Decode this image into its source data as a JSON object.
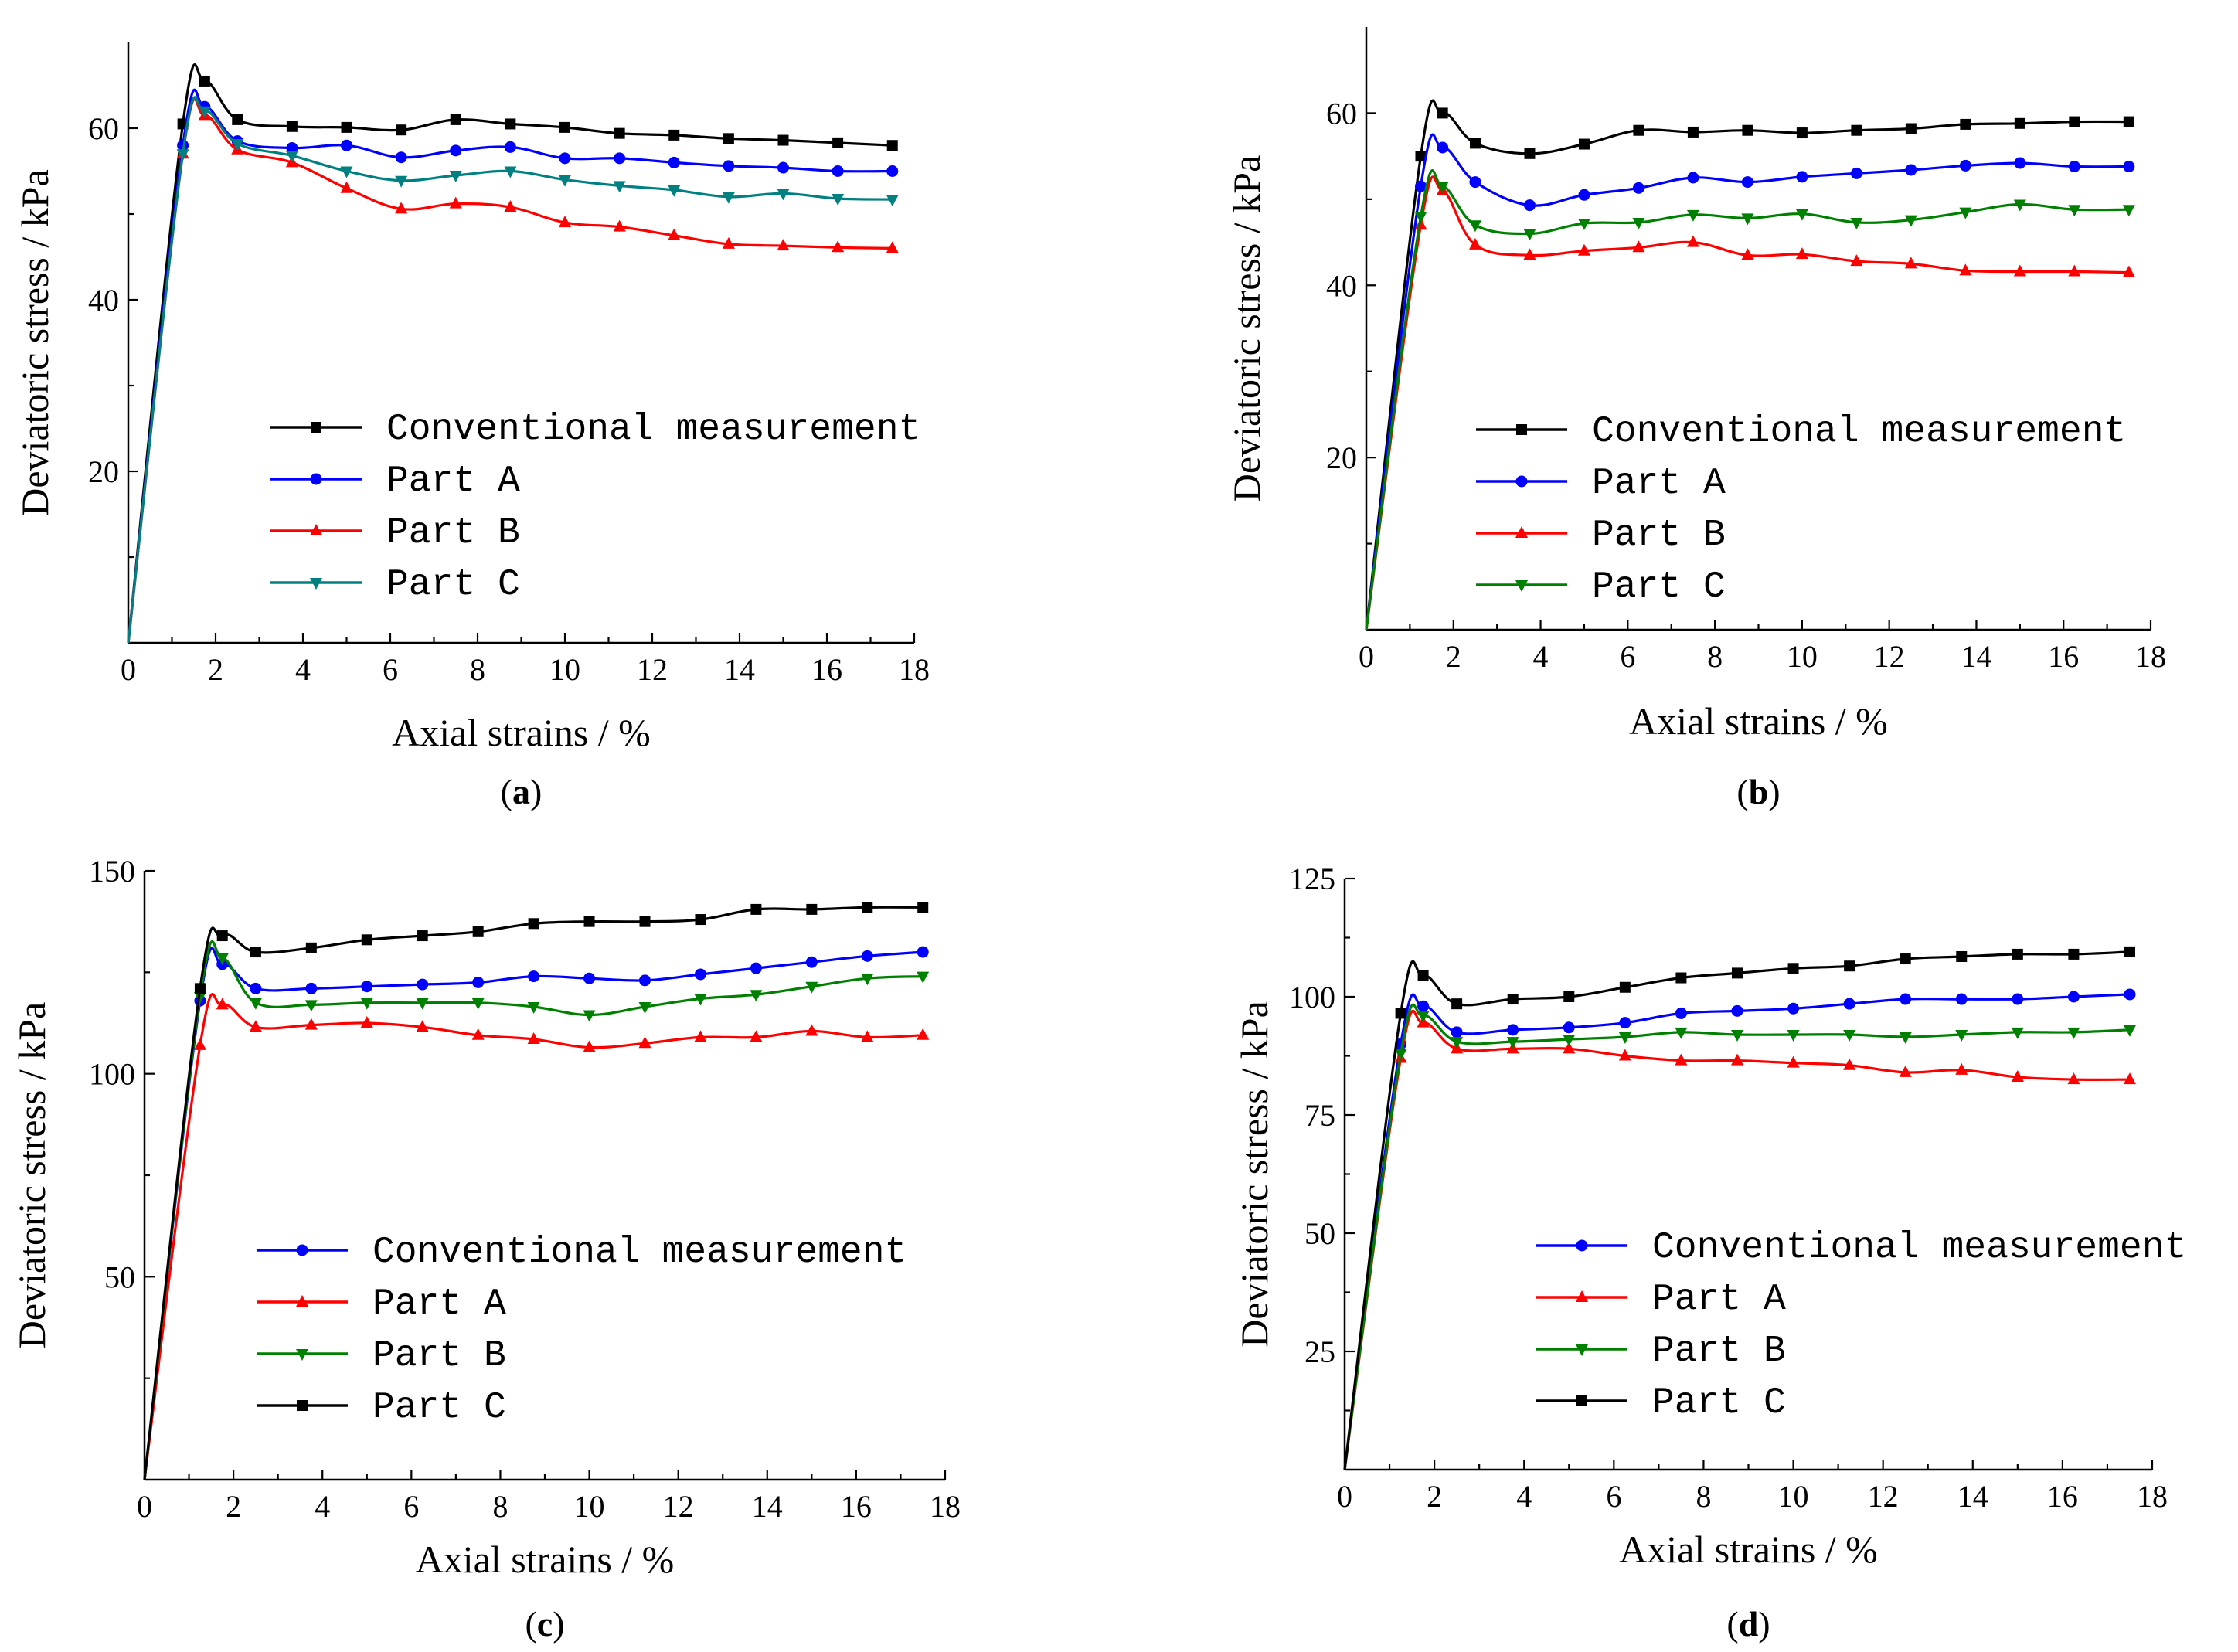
{
  "chart_data": [
    {
      "id": "a",
      "type": "line",
      "caption": "a",
      "xlabel": "Axial strains / %",
      "ylabel": "Deviatoric stress  / kPa",
      "xlim": [
        0,
        18
      ],
      "ylim": [
        0,
        70
      ],
      "xticks": [
        0,
        2,
        4,
        6,
        8,
        10,
        12,
        14,
        16,
        18
      ],
      "yticks": [
        20,
        40,
        60
      ],
      "legend_position": "center-right",
      "series": [
        {
          "name": "Conventional measurement",
          "color": "#000000",
          "marker": "square",
          "x": [
            0,
            1.25,
            1.75,
            2.5,
            3.75,
            5,
            6.25,
            7.5,
            8.75,
            10,
            11.25,
            12.5,
            13.75,
            15,
            16.25,
            17.5
          ],
          "y": [
            0,
            60.5,
            65.5,
            61,
            60.2,
            60.1,
            59.8,
            61,
            60.5,
            60.1,
            59.4,
            59.2,
            58.8,
            58.6,
            58.3,
            58
          ]
        },
        {
          "name": "Part A",
          "color": "#0000ff",
          "marker": "circle",
          "x": [
            0,
            1.25,
            1.75,
            2.5,
            3.75,
            5,
            6.25,
            7.5,
            8.75,
            10,
            11.25,
            12.5,
            13.75,
            15,
            16.25,
            17.5
          ],
          "y": [
            0,
            58,
            62.5,
            58.5,
            57.7,
            58,
            56.6,
            57.4,
            57.8,
            56.5,
            56.5,
            56,
            55.6,
            55.4,
            55,
            55
          ]
        },
        {
          "name": "Part B",
          "color": "#ff0000",
          "marker": "triangle-up",
          "x": [
            0,
            1.25,
            1.75,
            2.5,
            3.75,
            5,
            6.25,
            7.5,
            8.75,
            10,
            11.25,
            12.5,
            13.75,
            15,
            16.25,
            17.5
          ],
          "y": [
            0,
            57,
            61.5,
            57.5,
            56,
            53,
            50.6,
            51.2,
            50.8,
            49,
            48.5,
            47.5,
            46.5,
            46.3,
            46.1,
            46
          ]
        },
        {
          "name": "Part C",
          "color": "#008080",
          "marker": "triangle-down",
          "x": [
            0,
            1.25,
            1.75,
            2.5,
            3.75,
            5,
            6.25,
            7.5,
            8.75,
            10,
            11.25,
            12.5,
            13.75,
            15,
            16.25,
            17.5
          ],
          "y": [
            0,
            57,
            62,
            58.2,
            56.8,
            55,
            53.9,
            54.5,
            55,
            54,
            53.3,
            52.8,
            52,
            52.4,
            51.8,
            51.7
          ]
        }
      ]
    },
    {
      "id": "b",
      "type": "line",
      "caption": "b",
      "xlabel": "Axial strains / %",
      "ylabel": "Deviatoric stress  / kPa",
      "xlim": [
        0,
        18
      ],
      "ylim": [
        0,
        70
      ],
      "xticks": [
        0,
        2,
        4,
        6,
        8,
        10,
        12,
        14,
        16,
        18
      ],
      "yticks": [
        20,
        40,
        60
      ],
      "legend_position": "center-right",
      "series": [
        {
          "name": "Conventional measurement",
          "color": "#000000",
          "marker": "square",
          "x": [
            0,
            1.25,
            1.75,
            2.5,
            3.75,
            5,
            6.25,
            7.5,
            8.75,
            10,
            11.25,
            12.5,
            13.75,
            15,
            16.25,
            17.5
          ],
          "y": [
            0,
            55,
            60,
            56.5,
            55.3,
            56.4,
            58,
            57.8,
            58,
            57.7,
            58,
            58.2,
            58.7,
            58.8,
            59,
            59
          ]
        },
        {
          "name": "Part A",
          "color": "#0000ff",
          "marker": "circle",
          "x": [
            0,
            1.25,
            1.75,
            2.5,
            3.75,
            5,
            6.25,
            7.5,
            8.75,
            10,
            11.25,
            12.5,
            13.75,
            15,
            16.25,
            17.5
          ],
          "y": [
            0,
            51.5,
            56,
            52,
            49.3,
            50.5,
            51.3,
            52.5,
            52,
            52.6,
            53,
            53.4,
            53.9,
            54.2,
            53.8,
            53.8
          ]
        },
        {
          "name": "Part B",
          "color": "#ff0000",
          "marker": "triangle-up",
          "x": [
            0,
            1.25,
            1.75,
            2.5,
            3.75,
            5,
            6.25,
            7.5,
            8.75,
            10,
            11.25,
            12.5,
            13.75,
            15,
            16.25,
            17.5
          ],
          "y": [
            0,
            47,
            51,
            44.7,
            43.5,
            44,
            44.4,
            45,
            43.5,
            43.6,
            42.8,
            42.5,
            41.7,
            41.6,
            41.6,
            41.5
          ]
        },
        {
          "name": "Part C",
          "color": "#008000",
          "marker": "triangle-down",
          "x": [
            0,
            1.25,
            1.75,
            2.5,
            3.75,
            5,
            6.25,
            7.5,
            8.75,
            10,
            11.25,
            12.5,
            13.75,
            15,
            16.25,
            17.5
          ],
          "y": [
            0,
            48,
            51.5,
            47,
            46,
            47.2,
            47.3,
            48.2,
            47.8,
            48.3,
            47.3,
            47.6,
            48.5,
            49.4,
            48.8,
            48.8
          ]
        }
      ]
    },
    {
      "id": "c",
      "type": "line",
      "caption": "c",
      "xlabel": "Axial strains / %",
      "ylabel": "Deviatoric stress  / kPa",
      "xlim": [
        0,
        18
      ],
      "ylim": [
        0,
        150
      ],
      "xticks": [
        0,
        2,
        4,
        6,
        8,
        10,
        12,
        14,
        16,
        18
      ],
      "yticks": [
        50,
        100,
        150
      ],
      "legend_position": "center-right",
      "series": [
        {
          "name": "Conventional measurement",
          "color": "#0000ff",
          "marker": "circle",
          "x": [
            0,
            1.25,
            1.75,
            2.5,
            3.75,
            5,
            6.25,
            7.5,
            8.75,
            10,
            11.25,
            12.5,
            13.75,
            15,
            16.25,
            17.5
          ],
          "y": [
            0,
            118,
            127,
            121,
            121,
            121.5,
            122,
            122.5,
            124,
            123.5,
            123,
            124.5,
            126,
            127.5,
            129,
            130
          ]
        },
        {
          "name": "Part A",
          "color": "#ff0000",
          "marker": "triangle-up",
          "x": [
            0,
            1.25,
            1.75,
            2.5,
            3.75,
            5,
            6.25,
            7.5,
            8.75,
            10,
            11.25,
            12.5,
            13.75,
            15,
            16.25,
            17.5
          ],
          "y": [
            0,
            107,
            117,
            111.5,
            112,
            112.5,
            111.5,
            109.5,
            108.5,
            106.5,
            107.5,
            109,
            109,
            110.5,
            109,
            109.5
          ]
        },
        {
          "name": "Part B",
          "color": "#008000",
          "marker": "triangle-down",
          "x": [
            0,
            1.25,
            1.75,
            2.5,
            3.75,
            5,
            6.25,
            7.5,
            8.75,
            10,
            11.25,
            12.5,
            13.75,
            15,
            16.25,
            17.5
          ],
          "y": [
            0,
            119,
            128.5,
            117.5,
            117,
            117.5,
            117.5,
            117.5,
            116.5,
            114.5,
            116.5,
            118.5,
            119.5,
            121.5,
            123.5,
            124
          ]
        },
        {
          "name": "Part C",
          "color": "#000000",
          "marker": "square",
          "x": [
            0,
            1.25,
            1.75,
            2.5,
            3.75,
            5,
            6.25,
            7.5,
            8.75,
            10,
            11.25,
            12.5,
            13.75,
            15,
            16.25,
            17.5
          ],
          "y": [
            0,
            121,
            134,
            130,
            131,
            133,
            134,
            135,
            137,
            137.5,
            137.5,
            138,
            140.5,
            140.5,
            141,
            141
          ]
        }
      ]
    },
    {
      "id": "d",
      "type": "line",
      "caption": "d",
      "xlabel": "Axial strains / %",
      "ylabel": "Deviatoric stress  / kPa",
      "xlim": [
        0,
        18
      ],
      "ylim": [
        0,
        125
      ],
      "xticks": [
        0,
        2,
        4,
        6,
        8,
        10,
        12,
        14,
        16,
        18
      ],
      "yticks": [
        25,
        50,
        75,
        100,
        125
      ],
      "legend_position": "center-right",
      "series": [
        {
          "name": "Conventional measurement",
          "color": "#0000ff",
          "marker": "circle",
          "x": [
            0,
            1.25,
            1.75,
            2.5,
            3.75,
            5,
            6.25,
            7.5,
            8.75,
            10,
            11.25,
            12.5,
            13.75,
            15,
            16.25,
            17.5
          ],
          "y": [
            0,
            90,
            98,
            92.5,
            93,
            93.5,
            94.5,
            96.5,
            97,
            97.5,
            98.5,
            99.5,
            99.5,
            99.5,
            100,
            100.5
          ]
        },
        {
          "name": "Part A",
          "color": "#ff0000",
          "marker": "triangle-up",
          "x": [
            0,
            1.25,
            1.75,
            2.5,
            3.75,
            5,
            6.25,
            7.5,
            8.75,
            10,
            11.25,
            12.5,
            13.75,
            15,
            16.25,
            17.5
          ],
          "y": [
            0,
            87,
            94.5,
            89,
            89,
            89,
            87.5,
            86.5,
            86.5,
            86,
            85.5,
            84,
            84.5,
            83,
            82.5,
            82.5
          ]
        },
        {
          "name": "Part B",
          "color": "#008000",
          "marker": "triangle-down",
          "x": [
            0,
            1.25,
            1.75,
            2.5,
            3.75,
            5,
            6.25,
            7.5,
            8.75,
            10,
            11.25,
            12.5,
            13.75,
            15,
            16.25,
            17.5
          ],
          "y": [
            0,
            88,
            96,
            90.5,
            90.5,
            91,
            91.5,
            92.5,
            92,
            92,
            92,
            91.5,
            92,
            92.5,
            92.5,
            93
          ]
        },
        {
          "name": "Part C",
          "color": "#000000",
          "marker": "square",
          "x": [
            0,
            1.25,
            1.75,
            2.5,
            3.75,
            5,
            6.25,
            7.5,
            8.75,
            10,
            11.25,
            12.5,
            13.75,
            15,
            16.25,
            17.5
          ],
          "y": [
            0,
            96.5,
            104.5,
            98.5,
            99.5,
            100,
            102,
            104,
            105,
            106,
            106.5,
            108,
            108.5,
            109,
            109,
            109.5
          ]
        }
      ]
    }
  ]
}
